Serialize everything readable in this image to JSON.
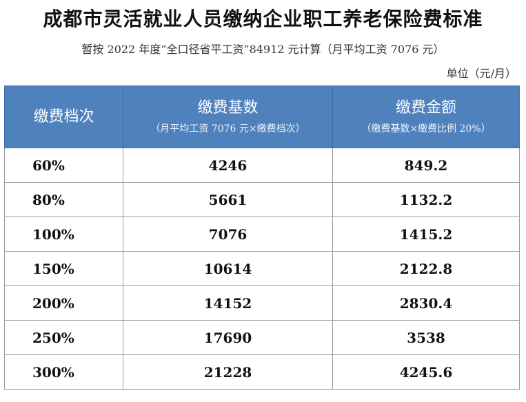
{
  "header": {
    "title": "成都市灵活就业人员缴纳企业职工养老保险费标准",
    "subtitle": "暂按 2022 年度“全口径省平工资”84912 元计算（月平均工资 7076 元）",
    "unit": "单位（元/月）"
  },
  "table": {
    "columns": [
      {
        "label": "缴费档次",
        "sublabel": ""
      },
      {
        "label": "缴费基数",
        "sublabel": "（月平均工资 7076 元×缴费档次）"
      },
      {
        "label": "缴费金额",
        "sublabel": "（缴费基数×缴费比例 20%）"
      }
    ],
    "rows": [
      {
        "level": "60%",
        "base": "4246",
        "amount": "849.2"
      },
      {
        "level": "80%",
        "base": "5661",
        "amount": "1132.2"
      },
      {
        "level": "100%",
        "base": "7076",
        "amount": "1415.2"
      },
      {
        "level": "150%",
        "base": "10614",
        "amount": "2122.8"
      },
      {
        "level": "200%",
        "base": "14152",
        "amount": "2830.4"
      },
      {
        "level": "250%",
        "base": "17690",
        "amount": "3538"
      },
      {
        "level": "300%",
        "base": "21228",
        "amount": "4245.6"
      }
    ]
  },
  "colors": {
    "header_bg": "#4f81bd",
    "header_text": "#ffffff",
    "border": "#9a9a9a"
  }
}
